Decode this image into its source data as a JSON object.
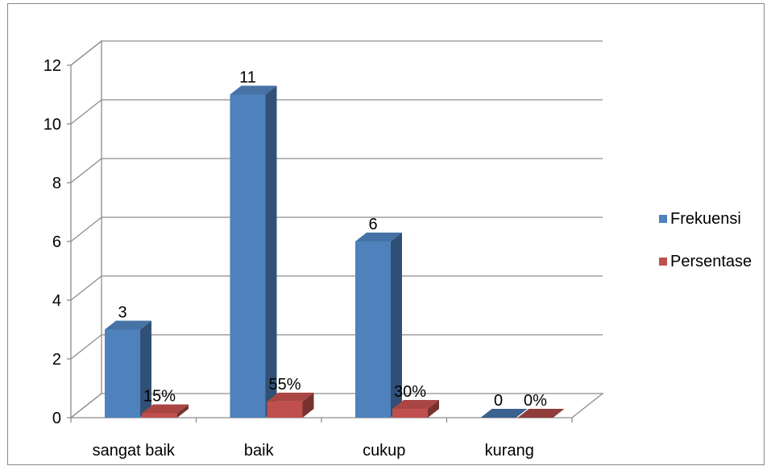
{
  "chart_data": {
    "type": "bar",
    "title": "",
    "xlabel": "",
    "ylabel": "",
    "categories": [
      "sangat baik",
      "baik",
      "cukup",
      "kurang"
    ],
    "ylim": [
      0,
      12
    ],
    "yticks": [
      0,
      2,
      4,
      6,
      8,
      10,
      12
    ],
    "grid": true,
    "legend_position": "right",
    "series": [
      {
        "name": "Frekuensi",
        "values": [
          3,
          11,
          6,
          0
        ],
        "labels": [
          "3",
          "11",
          "6",
          "0"
        ],
        "color": "#4f81bd"
      },
      {
        "name": "Persentase",
        "values": [
          0.15,
          0.55,
          0.3,
          0
        ],
        "labels": [
          "15%",
          "55%",
          "30%",
          "0%"
        ],
        "color": "#c0504d"
      }
    ]
  }
}
